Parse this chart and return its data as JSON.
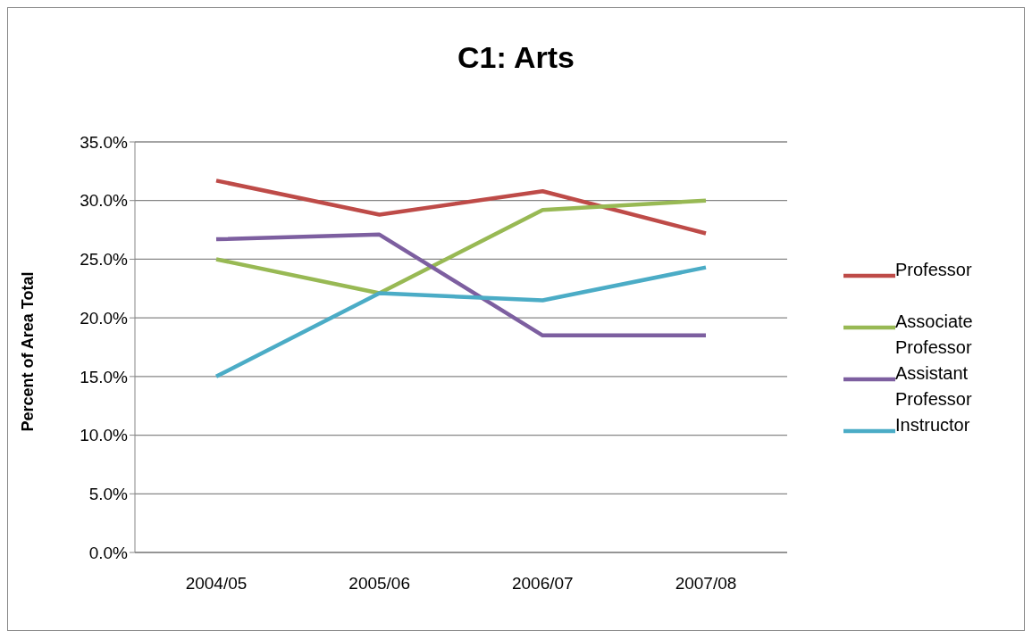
{
  "chart_data": {
    "type": "line",
    "title": "C1: Arts",
    "ylabel": "Percent of Area Total",
    "categories": [
      "2004/05",
      "2005/06",
      "2006/07",
      "2007/08"
    ],
    "series": [
      {
        "name": "Professor",
        "color": "#be4b48",
        "values": [
          31.7,
          28.8,
          30.8,
          27.2
        ]
      },
      {
        "name": "Associate Professor",
        "color": "#98b954",
        "values": [
          25.0,
          22.1,
          29.2,
          30.0
        ]
      },
      {
        "name": "Assistant Professor",
        "color": "#7d5fa0",
        "values": [
          26.7,
          27.1,
          18.5,
          18.5
        ]
      },
      {
        "name": "Instructor",
        "color": "#4bacc6",
        "values": [
          15.0,
          22.1,
          21.5,
          24.3
        ]
      }
    ],
    "ylim": [
      0,
      35
    ],
    "yticks": [
      {
        "value": 0,
        "label": "0.0%"
      },
      {
        "value": 5,
        "label": "5.0%"
      },
      {
        "value": 10,
        "label": "10.0%"
      },
      {
        "value": 15,
        "label": "15.0%"
      },
      {
        "value": 20,
        "label": "20.0%"
      },
      {
        "value": 25,
        "label": "25.0%"
      },
      {
        "value": 30,
        "label": "30.0%"
      },
      {
        "value": 35,
        "label": "35.0%"
      }
    ],
    "grid": "y",
    "legend": "right",
    "marker": "none"
  }
}
